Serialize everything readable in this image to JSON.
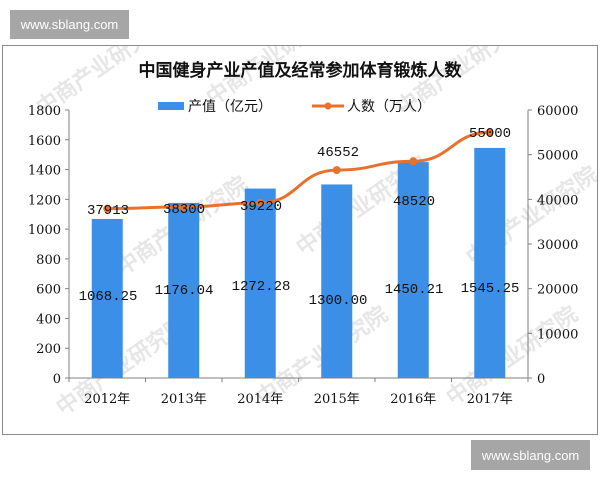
{
  "watermarks": {
    "top": "www.sblang.com",
    "bottom": "www.sblang.com",
    "background_text": "中商产业研究院"
  },
  "colors": {
    "bar": "#3c8fe6",
    "line": "#e8722d",
    "axis": "#808080",
    "frame": "#8c8c8c",
    "watermark_box": "#a6a6a6"
  },
  "chart_data": {
    "type": "bar+line",
    "title": "中国健身产业产值及经常参加体育锻炼人数",
    "categories": [
      "2012年",
      "2013年",
      "2014年",
      "2015年",
      "2016年",
      "2017年"
    ],
    "series": [
      {
        "name": "产值（亿元）",
        "type": "bar",
        "axis": "left",
        "values": [
          1068.25,
          1176.04,
          1272.28,
          1300.0,
          1450.21,
          1545.25
        ],
        "labels": [
          "1068.25",
          "1176.04",
          "1272.28",
          "1300.00",
          "1450.21",
          "1545.25"
        ]
      },
      {
        "name": "人数（万人）",
        "type": "line",
        "axis": "right",
        "values": [
          37913,
          38300,
          39220,
          46552,
          48520,
          55000
        ],
        "labels": [
          "37913",
          "38300",
          "39220",
          "46552",
          "48520",
          "55000"
        ]
      }
    ],
    "left_axis": {
      "ylim": [
        0,
        1800
      ],
      "ticks": [
        "0",
        "200",
        "400",
        "600",
        "800",
        "1000",
        "1200",
        "1400",
        "1600",
        "1800"
      ]
    },
    "right_axis": {
      "ylim": [
        0,
        60000
      ],
      "ticks": [
        "0",
        "10000",
        "20000",
        "30000",
        "40000",
        "50000",
        "60000"
      ]
    },
    "legend": {
      "position": "top",
      "items": [
        "产值（亿元）",
        "人数（万人）"
      ]
    },
    "grid": false
  }
}
